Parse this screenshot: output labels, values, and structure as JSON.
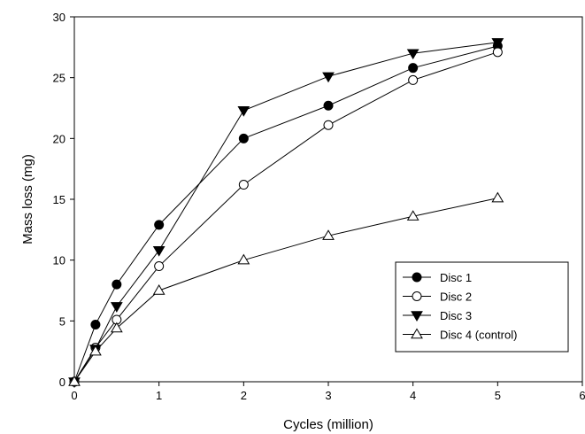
{
  "chart_data": {
    "type": "line",
    "title": "",
    "xlabel": "Cycles (million)",
    "ylabel": "Mass loss (mg)",
    "xlim": [
      0,
      6
    ],
    "ylim": [
      0,
      30
    ],
    "x_ticks": [
      "0",
      "1",
      "2",
      "3",
      "4",
      "5",
      "6"
    ],
    "y_ticks": [
      "0",
      "5",
      "10",
      "15",
      "20",
      "25",
      "30"
    ],
    "grid": false,
    "legend_position": "right, lower-middle",
    "series": [
      {
        "name": "Disc 1",
        "marker": "filled-circle",
        "color": "#000000",
        "x": [
          0,
          0.25,
          0.5,
          1,
          2,
          3,
          4,
          5
        ],
        "y": [
          0,
          4.7,
          8.0,
          12.9,
          20.0,
          22.7,
          25.8,
          27.6
        ]
      },
      {
        "name": "Disc 2",
        "marker": "open-circle",
        "color": "#000000",
        "x": [
          0,
          0.25,
          0.5,
          1,
          2,
          3,
          4,
          5
        ],
        "y": [
          0,
          2.8,
          5.1,
          9.5,
          16.2,
          21.1,
          24.8,
          27.1
        ]
      },
      {
        "name": "Disc 3",
        "marker": "filled-down-triangle",
        "color": "#000000",
        "x": [
          0,
          0.25,
          0.5,
          1,
          2,
          3,
          4,
          5
        ],
        "y": [
          0,
          2.7,
          6.2,
          10.8,
          22.3,
          25.1,
          27.0,
          27.9
        ]
      },
      {
        "name": "Disc 4 (control)",
        "marker": "open-up-triangle",
        "color": "#000000",
        "x": [
          0,
          0.25,
          0.5,
          1,
          2,
          3,
          4,
          5
        ],
        "y": [
          0,
          2.5,
          4.4,
          7.5,
          10.0,
          12.0,
          13.6,
          15.1
        ]
      }
    ]
  }
}
